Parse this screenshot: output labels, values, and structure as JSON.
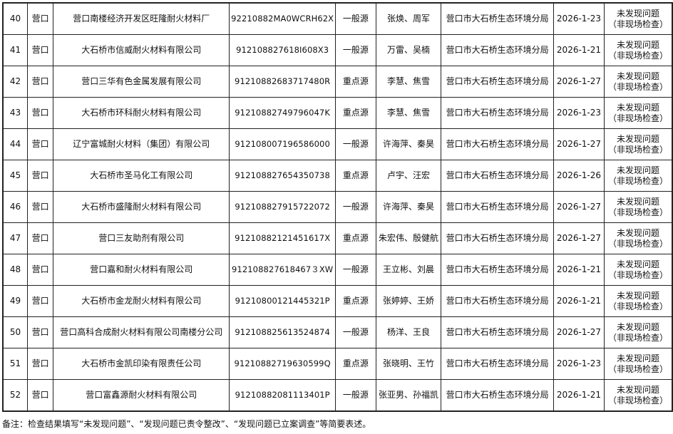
{
  "rows": [
    {
      "no": "40",
      "city": "营口",
      "name": "营口南楼经济开发区旺隆耐火材料厂",
      "code": "92210882MA0WCRH62X",
      "type": "一般源",
      "inspectors": "张焕、周军",
      "agency": "营口市大石桥生态环境分局",
      "date": "2026-1-23",
      "result_line1": "未发现问题",
      "result_line2": "（非现场检查）"
    },
    {
      "no": "41",
      "city": "营口",
      "name": "大石桥市信威耐火材料有限公司",
      "code": "912108827618I608X3",
      "type": "一般源",
      "inspectors": "万雷、吴楠",
      "agency": "营口市大石桥生态环境分局",
      "date": "2026-1-21",
      "result_line1": "未发现问题",
      "result_line2": "（非现场检查）"
    },
    {
      "no": "42",
      "city": "营口",
      "name": "营口三华有色金属发展有限公司",
      "code": "91210882683717480R",
      "type": "重点源",
      "inspectors": "李慧、焦雪",
      "agency": "营口市大石桥生态环境分局",
      "date": "2026-1-27",
      "result_line1": "未发现问题",
      "result_line2": "（非现场检查）"
    },
    {
      "no": "43",
      "city": "营口",
      "name": "大石桥市环科耐火材料有限公司",
      "code": "91210882749796047K",
      "type": "重点源",
      "inspectors": "李慧、焦雪",
      "agency": "营口市大石桥生态环境分局",
      "date": "2026-1-23",
      "result_line1": "未发现问题",
      "result_line2": "（非现场检查）"
    },
    {
      "no": "44",
      "city": "营口",
      "name": "辽宁富城耐火材料（集团）有限公司",
      "code": "912108007196586000",
      "type": "一般源",
      "inspectors": "许海萍、秦昊",
      "agency": "营口市大石桥生态环境分局",
      "date": "2026-1-27",
      "result_line1": "未发现问题",
      "result_line2": "（非现场检查）"
    },
    {
      "no": "45",
      "city": "营口",
      "name": "大石桥市圣马化工有限公司",
      "code": "912108827654350738",
      "type": "重点源",
      "inspectors": "卢宇、汪宏",
      "agency": "营口市大石桥生态环境分局",
      "date": "2026-1-26",
      "result_line1": "未发现问题",
      "result_line2": "（非现场检查）"
    },
    {
      "no": "46",
      "city": "营口",
      "name": "大石桥市盛隆耐火材料有限公司",
      "code": "912108827915722072",
      "type": "一般源",
      "inspectors": "许海萍、秦昊",
      "agency": "营口市大石桥生态环境分局",
      "date": "2026-1-27",
      "result_line1": "未发现问题",
      "result_line2": "（非现场检查）"
    },
    {
      "no": "47",
      "city": "营口",
      "name": "营口三友助剂有限公司",
      "code": "91210882121451617X",
      "type": "重点源",
      "inspectors": "朱宏伟、殷健航",
      "agency": "营口市大石桥生态环境分局",
      "date": "2026-1-27",
      "result_line1": "未发现问题",
      "result_line2": "（非现场检查）"
    },
    {
      "no": "48",
      "city": "营口",
      "name": "营口嘉和耐火材料有限公司",
      "code": "912108827618467３XW",
      "type": "一般源",
      "inspectors": "王立彬、刘晨",
      "agency": "营口市大石桥生态环境分局",
      "date": "2026-1-21",
      "result_line1": "未发现问题",
      "result_line2": "（非现场检查）"
    },
    {
      "no": "49",
      "city": "营口",
      "name": "大石桥市金龙耐火材料有限公司",
      "code": "91210800121445321P",
      "type": "重点源",
      "inspectors": "张婷婷、王娇",
      "agency": "营口市大石桥生态环境分局",
      "date": "2026-1-21",
      "result_line1": "未发现问题",
      "result_line2": "（非现场检查）"
    },
    {
      "no": "50",
      "city": "营口",
      "name": "营口高科合成耐火材料有限公司南楼分公司",
      "code": "912108825613524874",
      "type": "一般源",
      "inspectors": "杨洋、王良",
      "agency": "营口市大石桥生态环境分局",
      "date": "2026-1-27",
      "result_line1": "未发现问题",
      "result_line2": "（非现场检查）"
    },
    {
      "no": "51",
      "city": "营口",
      "name": "大石桥市金凯印染有限责任公司",
      "code": "91210882719630599Q",
      "type": "重点源",
      "inspectors": "张晓明、王竹",
      "agency": "营口市大石桥生态环境分局",
      "date": "2026-1-23",
      "result_line1": "未发现问题",
      "result_line2": "（非现场检查）"
    },
    {
      "no": "52",
      "city": "营口",
      "name": "营口富鑫源耐火材料有限公司",
      "code": "91210882081113401P",
      "type": "一般源",
      "inspectors": "张亚男、孙福凯",
      "agency": "营口市大石桥生态环境分局",
      "date": "2026-1-21",
      "result_line1": "未发现问题",
      "result_line2": "（非现场检查）"
    }
  ],
  "note": "备注：检查结果填写“未发现问题”、“发现问题已责令整改”、“发现问题已立案调查”等简要表述。"
}
